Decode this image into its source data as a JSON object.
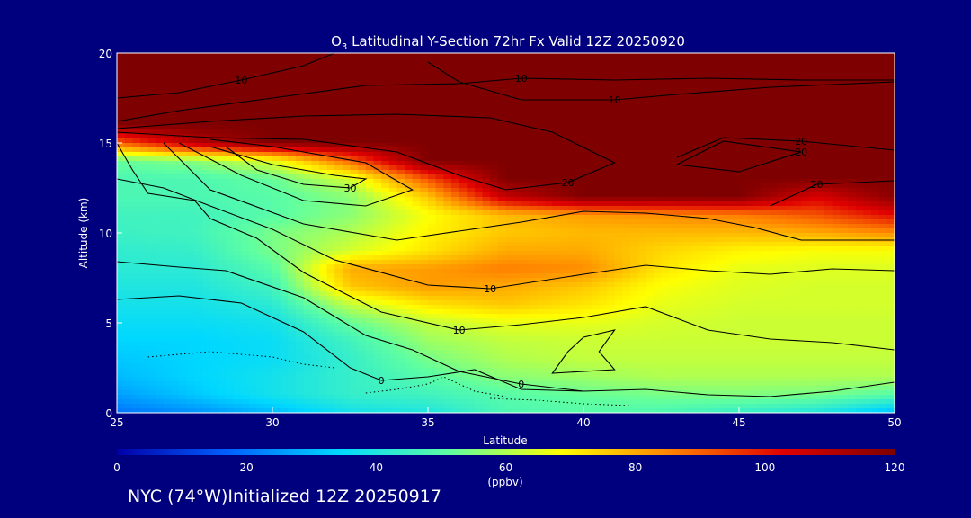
{
  "chart_data": {
    "type": "heatmap",
    "title_main": "O",
    "title_sub": "3",
    "title_rest": " Latitudinal Y-Section 72hr  Fx Valid 12Z 20250920",
    "xlabel": "Latitude",
    "ylabel": "Altitude (km)",
    "xlim": [
      25,
      50
    ],
    "ylim": [
      0,
      20
    ],
    "x_ticks": [
      "25",
      "30",
      "35",
      "40",
      "45",
      "50"
    ],
    "y_ticks": [
      "0",
      "5",
      "10",
      "15",
      "20"
    ],
    "grid": false,
    "colorbar": {
      "range": [
        0,
        120
      ],
      "ticks": [
        "0",
        "20",
        "40",
        "60",
        "80",
        "100",
        "120"
      ],
      "unit": "(ppbv)",
      "colormap": [
        "#0000a8",
        "#0060ff",
        "#00d8ff",
        "#60ffa0",
        "#ffff00",
        "#ff8000",
        "#e00000",
        "#7f0000"
      ]
    },
    "latitudes": [
      25,
      27.5,
      30,
      32.5,
      35,
      37.5,
      40,
      42.5,
      45,
      47.5,
      50
    ],
    "altitudes": [
      0,
      1,
      2,
      3,
      4,
      5,
      6,
      7,
      8,
      9,
      10,
      11,
      12,
      13,
      14,
      15,
      16,
      17,
      18,
      19,
      20
    ],
    "ozone_ppbv": [
      [
        20,
        24,
        30,
        38,
        40,
        48,
        50,
        48,
        44,
        40,
        30
      ],
      [
        26,
        32,
        38,
        44,
        46,
        50,
        52,
        54,
        55,
        54,
        50
      ],
      [
        30,
        34,
        38,
        44,
        50,
        56,
        58,
        60,
        60,
        60,
        60
      ],
      [
        32,
        34,
        36,
        44,
        54,
        60,
        62,
        62,
        62,
        62,
        62
      ],
      [
        34,
        34,
        36,
        46,
        58,
        62,
        63,
        63,
        63,
        63,
        63
      ],
      [
        36,
        36,
        38,
        52,
        62,
        66,
        66,
        64,
        63,
        63,
        63
      ],
      [
        38,
        38,
        42,
        62,
        72,
        76,
        72,
        66,
        64,
        64,
        64
      ],
      [
        40,
        40,
        46,
        76,
        82,
        80,
        76,
        68,
        65,
        64,
        64
      ],
      [
        42,
        42,
        50,
        80,
        82,
        86,
        84,
        72,
        66,
        65,
        65
      ],
      [
        43,
        44,
        54,
        64,
        72,
        80,
        80,
        74,
        70,
        68,
        68
      ],
      [
        45,
        46,
        54,
        60,
        70,
        76,
        78,
        78,
        78,
        80,
        84
      ],
      [
        46,
        46,
        50,
        56,
        68,
        78,
        82,
        84,
        86,
        92,
        102
      ],
      [
        48,
        48,
        50,
        56,
        76,
        108,
        120,
        120,
        120,
        104,
        118
      ],
      [
        48,
        48,
        52,
        64,
        92,
        120,
        120,
        120,
        120,
        120,
        120
      ],
      [
        52,
        56,
        66,
        90,
        120,
        120,
        120,
        120,
        120,
        120,
        120
      ],
      [
        90,
        110,
        120,
        120,
        120,
        120,
        120,
        120,
        120,
        120,
        120
      ],
      [
        120,
        120,
        120,
        120,
        120,
        120,
        120,
        120,
        120,
        120,
        120
      ],
      [
        120,
        120,
        120,
        120,
        120,
        120,
        120,
        120,
        120,
        120,
        120
      ],
      [
        120,
        120,
        120,
        120,
        120,
        120,
        120,
        120,
        120,
        120,
        120
      ],
      [
        120,
        120,
        120,
        120,
        120,
        120,
        120,
        120,
        120,
        120,
        120
      ],
      [
        120,
        120,
        120,
        120,
        120,
        120,
        120,
        120,
        120,
        120,
        120
      ]
    ],
    "contours": [
      {
        "label": "10",
        "points": [
          [
            25,
            16.2
          ],
          [
            27,
            16.8
          ],
          [
            30,
            17.5
          ],
          [
            33,
            18.2
          ],
          [
            36,
            18.3
          ],
          [
            38,
            18.6
          ],
          [
            41,
            18.5
          ],
          [
            44,
            18.6
          ],
          [
            47,
            18.5
          ],
          [
            50,
            18.5
          ]
        ]
      },
      {
        "label": "10",
        "points": [
          [
            25,
            17.5
          ],
          [
            27,
            17.8
          ],
          [
            29,
            18.5
          ],
          [
            31,
            19.3
          ],
          [
            32,
            20
          ]
        ]
      },
      {
        "label": "10",
        "points": [
          [
            35,
            19.5
          ],
          [
            36,
            18.4
          ],
          [
            38,
            17.4
          ],
          [
            41,
            17.4
          ],
          [
            43,
            17.7
          ],
          [
            46,
            18.1
          ],
          [
            50,
            18.4
          ]
        ]
      },
      {
        "label": "20",
        "points": [
          [
            25,
            15.8
          ],
          [
            28,
            16.2
          ],
          [
            31,
            16.5
          ],
          [
            34,
            16.6
          ],
          [
            37,
            16.4
          ],
          [
            39,
            15.6
          ],
          [
            41,
            13.9
          ],
          [
            39.5,
            12.8
          ],
          [
            37.5,
            12.4
          ],
          [
            36,
            13.2
          ],
          [
            34,
            14.5
          ],
          [
            31,
            15.2
          ],
          [
            28,
            15.3
          ],
          [
            25,
            15.6
          ]
        ]
      },
      {
        "label": "20",
        "points": [
          [
            43,
            14.2
          ],
          [
            44.5,
            15.3
          ],
          [
            47,
            15.1
          ],
          [
            50,
            14.6
          ]
        ]
      },
      {
        "label": "20",
        "points": [
          [
            43,
            13.8
          ],
          [
            45,
            13.4
          ],
          [
            47,
            14.5
          ],
          [
            44.5,
            15.1
          ],
          [
            43,
            13.8
          ]
        ]
      },
      {
        "label": "20",
        "points": [
          [
            46,
            11.5
          ],
          [
            47.5,
            12.7
          ],
          [
            50,
            12.9
          ]
        ]
      },
      {
        "label": "30",
        "points": [
          [
            28,
            14.8
          ],
          [
            30,
            13.8
          ],
          [
            32,
            13.2
          ],
          [
            33,
            13
          ],
          [
            32.5,
            12.5
          ],
          [
            31,
            12.7
          ],
          [
            29.5,
            13.5
          ],
          [
            28.5,
            14.8
          ]
        ]
      },
      {
        "label": "",
        "points": [
          [
            27,
            15
          ],
          [
            29,
            13.2
          ],
          [
            31,
            11.8
          ],
          [
            33,
            11.5
          ],
          [
            34.5,
            12.4
          ],
          [
            33,
            13.9
          ],
          [
            30,
            14.8
          ],
          [
            28,
            15.2
          ]
        ]
      },
      {
        "label": "",
        "points": [
          [
            26.5,
            15
          ],
          [
            28,
            12.4
          ],
          [
            31,
            10.5
          ],
          [
            34,
            9.6
          ],
          [
            38,
            10.6
          ],
          [
            40,
            11.2
          ],
          [
            42,
            11.1
          ],
          [
            44,
            10.8
          ],
          [
            45.5,
            10.3
          ],
          [
            47,
            9.6
          ],
          [
            50,
            9.6
          ]
        ]
      },
      {
        "label": "10",
        "points": [
          [
            25,
            13
          ],
          [
            26.5,
            12.5
          ],
          [
            28,
            11.5
          ],
          [
            30,
            10.2
          ],
          [
            32,
            8.5
          ],
          [
            35,
            7.1
          ],
          [
            37,
            6.9
          ],
          [
            40,
            7.7
          ],
          [
            42,
            8.2
          ],
          [
            44,
            7.9
          ],
          [
            46,
            7.7
          ],
          [
            48,
            8.0
          ],
          [
            50,
            7.9
          ]
        ]
      },
      {
        "label": "10",
        "points": [
          [
            25,
            15
          ],
          [
            25.5,
            13.5
          ],
          [
            26,
            12.2
          ],
          [
            27.5,
            11.8
          ],
          [
            28,
            10.8
          ],
          [
            29.5,
            9.7
          ],
          [
            31,
            7.8
          ],
          [
            33.5,
            5.6
          ],
          [
            36,
            4.6
          ],
          [
            38,
            4.9
          ],
          [
            40,
            5.3
          ],
          [
            42,
            5.9
          ],
          [
            44,
            4.6
          ],
          [
            46,
            4.1
          ],
          [
            48,
            3.9
          ],
          [
            50,
            3.5
          ]
        ]
      },
      {
        "label": "0",
        "points": [
          [
            25,
            8.4
          ],
          [
            27,
            8.1
          ],
          [
            28.5,
            7.9
          ],
          [
            31,
            6.4
          ],
          [
            33,
            4.3
          ],
          [
            34.5,
            3.5
          ],
          [
            36,
            2.3
          ],
          [
            38,
            1.6
          ],
          [
            40,
            1.2
          ],
          [
            42,
            1.3
          ],
          [
            44,
            1.0
          ],
          [
            46,
            0.9
          ],
          [
            48,
            1.2
          ],
          [
            50,
            1.7
          ]
        ]
      },
      {
        "label": "0",
        "points": [
          [
            25,
            6.3
          ],
          [
            27,
            6.5
          ],
          [
            29,
            6.1
          ],
          [
            31,
            4.5
          ],
          [
            32.5,
            2.5
          ],
          [
            33.5,
            1.8
          ],
          [
            35,
            2.0
          ],
          [
            36.5,
            2.4
          ],
          [
            38,
            1.3
          ],
          [
            40,
            1.2
          ]
        ]
      },
      {
        "label": "",
        "points": [
          [
            39.5,
            3.4
          ],
          [
            40,
            4.2
          ],
          [
            41,
            4.6
          ],
          [
            40.5,
            3.4
          ],
          [
            41,
            2.4
          ],
          [
            39,
            2.2
          ],
          [
            39.5,
            3.4
          ]
        ]
      }
    ],
    "dotted_contours": [
      {
        "points": [
          [
            26,
            3.1
          ],
          [
            28,
            3.4
          ],
          [
            30,
            3.1
          ],
          [
            31,
            2.7
          ],
          [
            32,
            2.5
          ]
        ]
      },
      {
        "points": [
          [
            33,
            1.1
          ],
          [
            34,
            1.3
          ],
          [
            35,
            1.6
          ],
          [
            35.5,
            2.0
          ],
          [
            36.5,
            1.2
          ],
          [
            37.5,
            0.9
          ]
        ]
      },
      {
        "points": [
          [
            37,
            0.8
          ],
          [
            38.5,
            0.7
          ],
          [
            40,
            0.5
          ],
          [
            41.5,
            0.4
          ]
        ]
      }
    ]
  },
  "footer": "NYC (74°W)Initialized 12Z 20250917"
}
